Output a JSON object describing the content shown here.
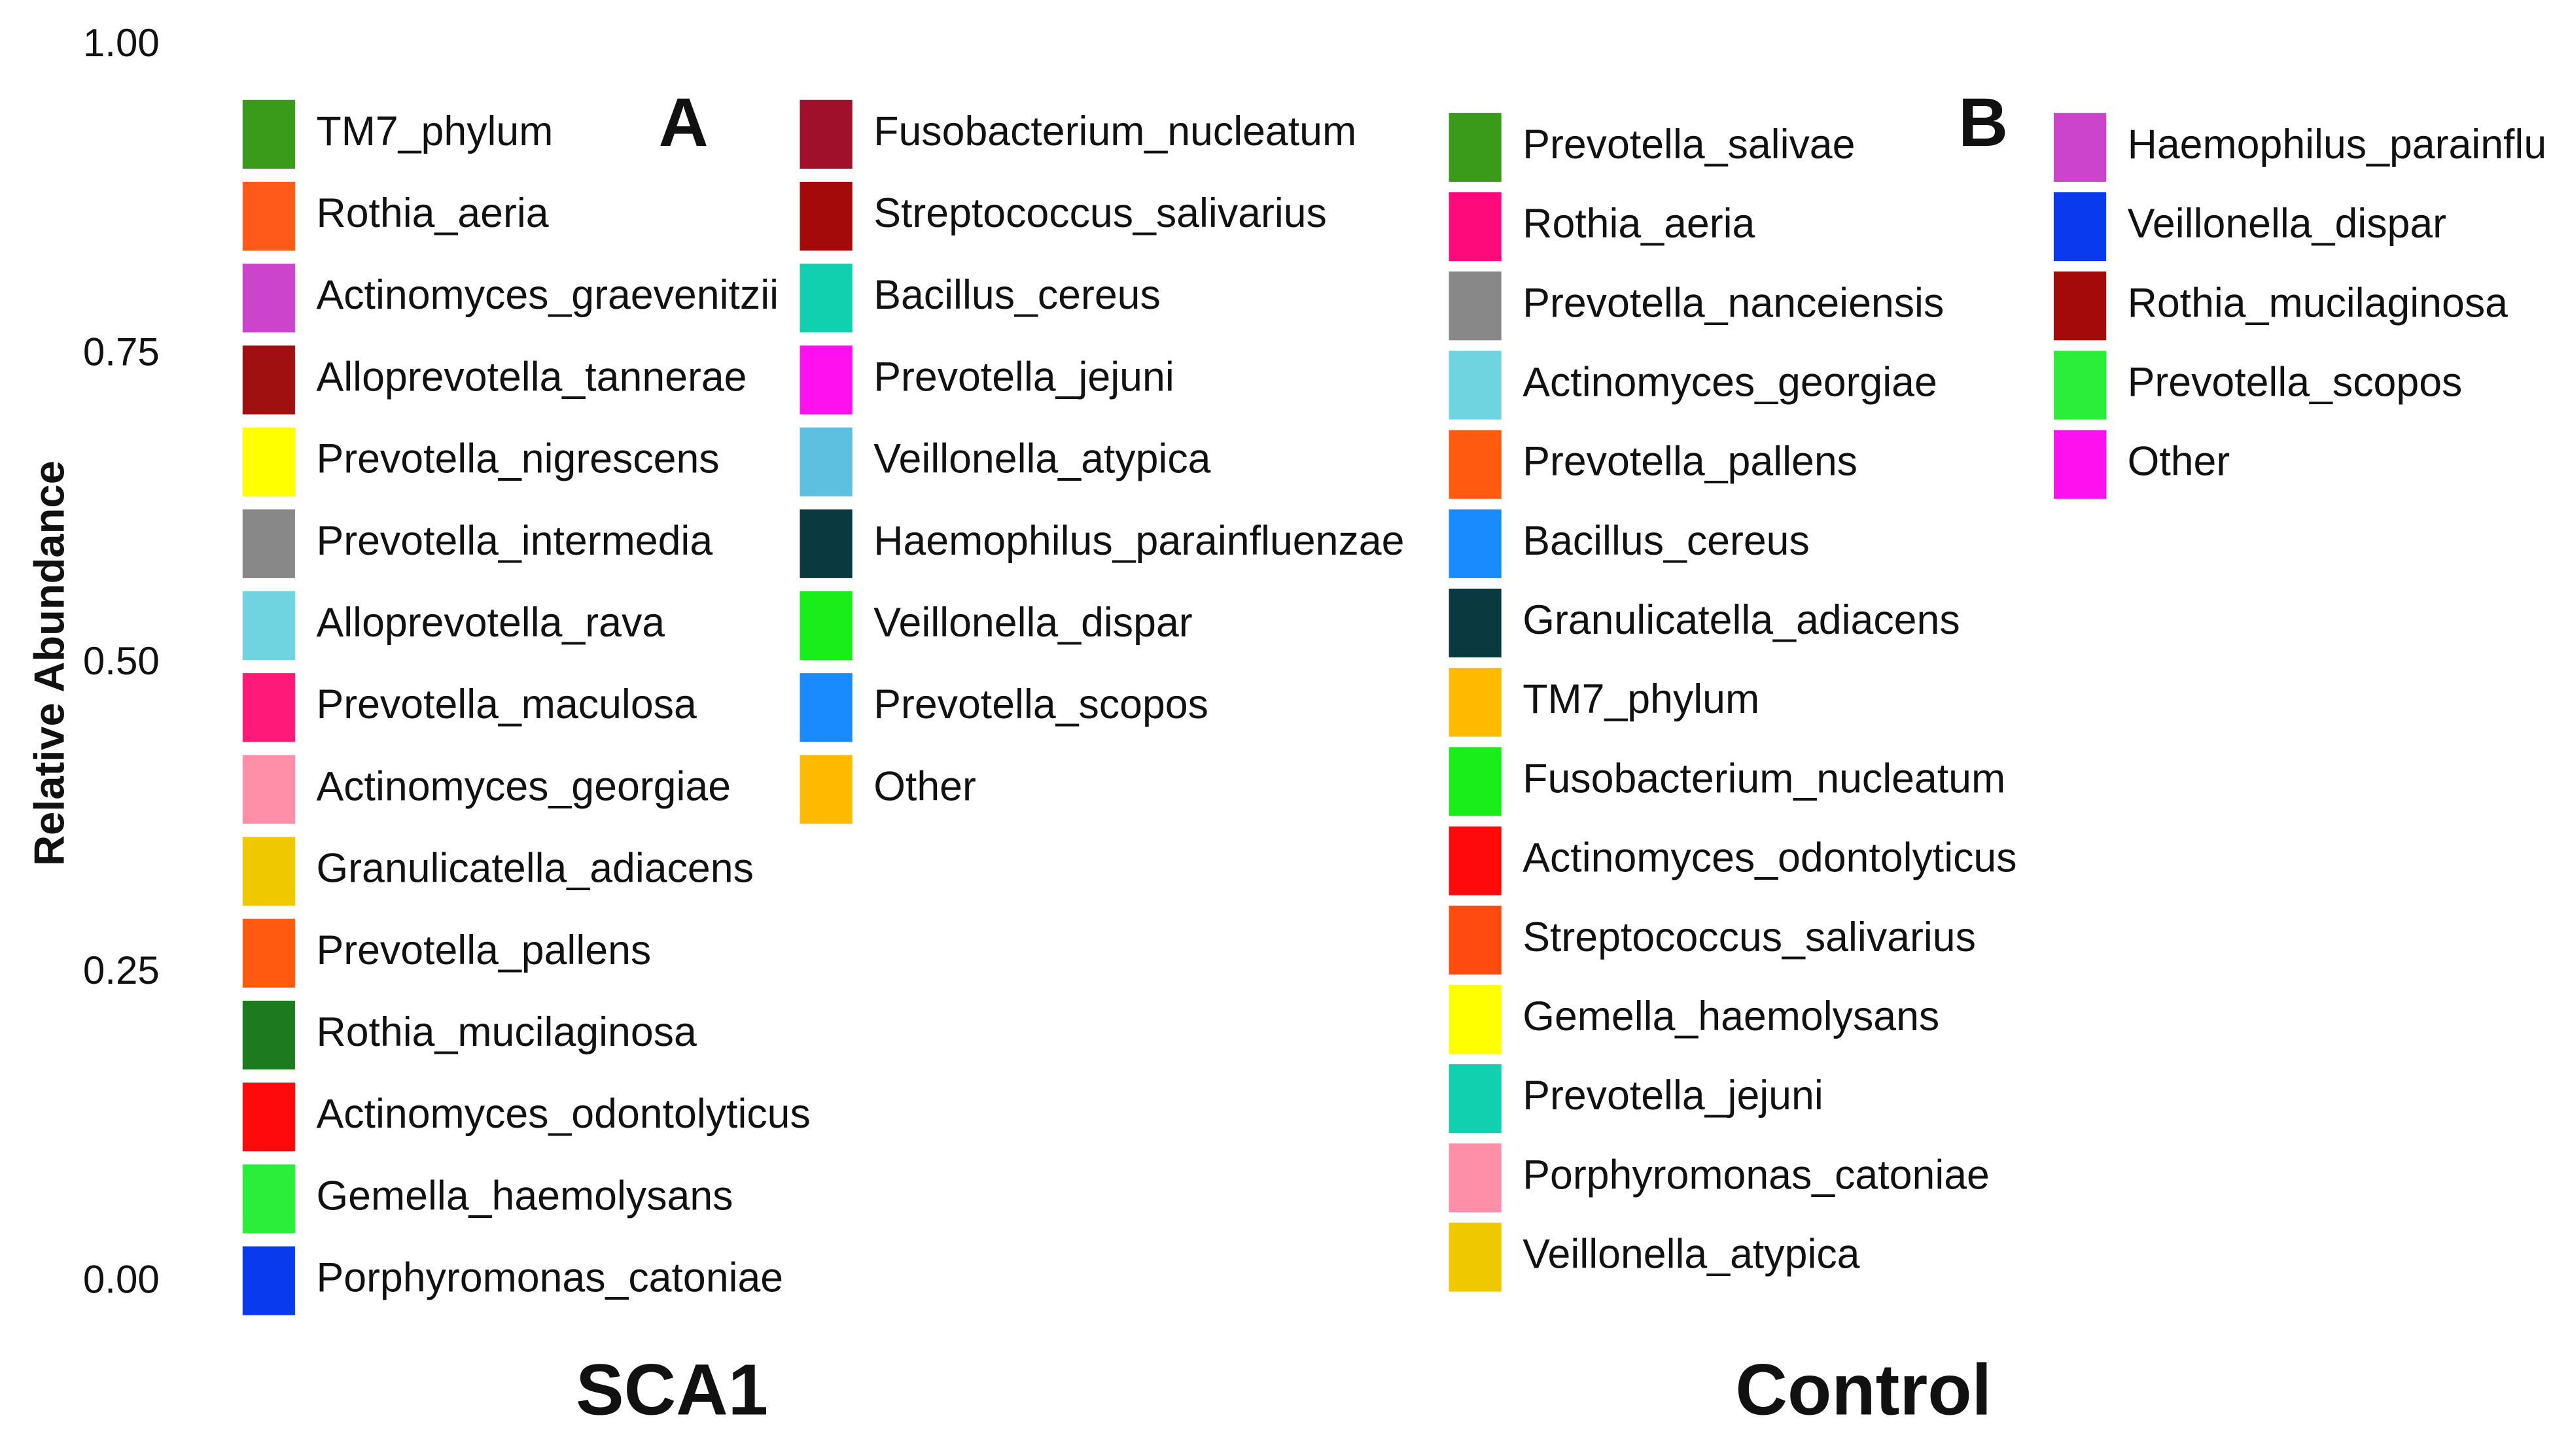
{
  "chart_data": {
    "type": "bar",
    "ylabel": "Relative Abundance",
    "ylim": [
      0,
      1
    ],
    "yticks": [
      {
        "value": 0,
        "label": "0.00"
      },
      {
        "value": 0.25,
        "label": "0.25"
      },
      {
        "value": 0.5,
        "label": "0.50"
      },
      {
        "value": 0.75,
        "label": "0.75"
      },
      {
        "value": 1,
        "label": "1.00"
      }
    ],
    "panels": [
      {
        "label": "A",
        "category": "SCA1",
        "series": [
          {
            "name": "TM7_phylum",
            "color": "#3a9a1a"
          },
          {
            "name": "Rothia_aeria",
            "color": "#ff5a1a"
          },
          {
            "name": "Actinomyces_graevenitzii",
            "color": "#cc44cc"
          },
          {
            "name": "Alloprevotella_tannerae",
            "color": "#a01010"
          },
          {
            "name": "Prevotella_nigrescens",
            "color": "#ffff00"
          },
          {
            "name": "Prevotella_intermedia",
            "color": "#888888"
          },
          {
            "name": "Alloprevotella_rava",
            "color": "#6fd3e0"
          },
          {
            "name": "Prevotella_maculosa",
            "color": "#ff1a7a"
          },
          {
            "name": "Actinomyces_georgiae",
            "color": "#ff8fa8"
          },
          {
            "name": "Granulicatella_adiacens",
            "color": "#f0c800"
          },
          {
            "name": "Prevotella_pallens",
            "color": "#ff5a10"
          },
          {
            "name": "Rothia_mucilaginosa",
            "color": "#1e7a1e"
          },
          {
            "name": "Actinomyces_odontolyticus",
            "color": "#ff0a0a"
          },
          {
            "name": "Gemella_haemolysans",
            "color": "#2aee3a"
          },
          {
            "name": "Porphyromonas_catoniae",
            "color": "#0a3aee"
          },
          {
            "name": "Fusobacterium_nucleatum",
            "color": "#a0102a"
          },
          {
            "name": "Streptococcus_salivarius",
            "color": "#a50a0a"
          },
          {
            "name": "Bacillus_cereus",
            "color": "#10d0b0"
          },
          {
            "name": "Prevotella_jejuni",
            "color": "#ff10ee"
          },
          {
            "name": "Veillonella_atypica",
            "color": "#5ec0e0"
          },
          {
            "name": "Haemophilus_parainfluenzae",
            "color": "#0a3a40"
          },
          {
            "name": "Veillonella_dispar",
            "color": "#1aee1a"
          },
          {
            "name": "Prevotella_scopos",
            "color": "#1a8aff"
          },
          {
            "name": "Other",
            "color": "#ffbb00"
          }
        ]
      },
      {
        "label": "B",
        "category": "Control",
        "series": [
          {
            "name": "Prevotella_salivae",
            "color": "#3a9a1a"
          },
          {
            "name": "Rothia_aeria",
            "color": "#ff0a7a"
          },
          {
            "name": "Prevotella_nanceiensis",
            "color": "#888888"
          },
          {
            "name": "Actinomyces_georgiae",
            "color": "#6fd3e0"
          },
          {
            "name": "Prevotella_pallens",
            "color": "#ff5a10"
          },
          {
            "name": "Bacillus_cereus",
            "color": "#1a8aff"
          },
          {
            "name": "Granulicatella_adiacens",
            "color": "#0a3a40"
          },
          {
            "name": "TM7_phylum",
            "color": "#ffbb00"
          },
          {
            "name": "Fusobacterium_nucleatum",
            "color": "#1aee1a"
          },
          {
            "name": "Actinomyces_odontolyticus",
            "color": "#ff0a0a"
          },
          {
            "name": "Streptococcus_salivarius",
            "color": "#ff4a10"
          },
          {
            "name": "Gemella_haemolysans",
            "color": "#ffff00"
          },
          {
            "name": "Prevotella_jejuni",
            "color": "#10d0b0"
          },
          {
            "name": "Porphyromonas_catoniae",
            "color": "#ff8fa8"
          },
          {
            "name": "Veillonella_atypica",
            "color": "#f0c800"
          },
          {
            "name": "Haemophilus_parainflu",
            "color": "#cc44cc"
          },
          {
            "name": "Veillonella_dispar",
            "color": "#0a3aee"
          },
          {
            "name": "Rothia_mucilaginosa",
            "color": "#a50a0a"
          },
          {
            "name": "Prevotella_scopos",
            "color": "#2aee3a"
          },
          {
            "name": "Other",
            "color": "#ff10ee"
          }
        ]
      }
    ]
  }
}
